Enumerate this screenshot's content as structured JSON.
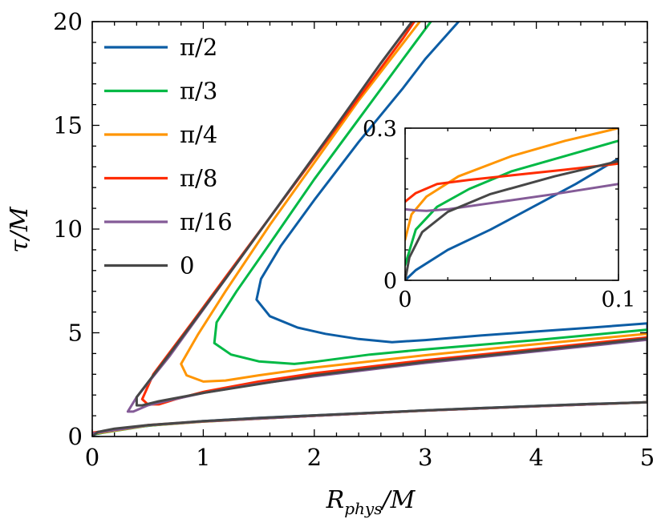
{
  "chart_data": [
    {
      "type": "line",
      "id": "main",
      "title": "",
      "xlabel": "R_phys/M",
      "ylabel": "τ/M",
      "xlim": [
        0,
        5
      ],
      "ylim": [
        0,
        20
      ],
      "x_ticks": [
        "0",
        "1",
        "2",
        "3",
        "4",
        "5"
      ],
      "y_ticks": [
        "0",
        "5",
        "10",
        "15",
        "20"
      ],
      "grid": false,
      "legend_position": "upper-left",
      "series": [
        {
          "name": "π/2",
          "color": "#0C5DA5",
          "points": [
            [
              0,
              0.08
            ],
            [
              0.3,
              0.4
            ],
            [
              0.6,
              0.57
            ],
            [
              1.0,
              0.74
            ],
            [
              1.5,
              0.9
            ],
            [
              2.0,
              1.02
            ],
            [
              2.5,
              1.14
            ],
            [
              3.0,
              1.26
            ],
            [
              3.5,
              1.37
            ],
            [
              4.0,
              1.47
            ],
            [
              4.5,
              1.57
            ],
            [
              5.0,
              1.65
            ],
            [
              5.0,
              5.45
            ],
            [
              4.5,
              5.25
            ],
            [
              4.0,
              5.06
            ],
            [
              3.5,
              4.87
            ],
            [
              3.0,
              4.65
            ],
            [
              2.7,
              4.55
            ],
            [
              2.4,
              4.7
            ],
            [
              2.1,
              4.95
            ],
            [
              1.85,
              5.25
            ],
            [
              1.6,
              5.8
            ],
            [
              1.48,
              6.6
            ],
            [
              1.52,
              7.6
            ],
            [
              1.7,
              9.2
            ],
            [
              2.0,
              11.4
            ],
            [
              2.4,
              14.2
            ],
            [
              2.8,
              16.8
            ],
            [
              3.0,
              18.2
            ],
            [
              3.3,
              20
            ]
          ]
        },
        {
          "name": "π/3",
          "color": "#00B945",
          "points": [
            [
              0,
              0.1
            ],
            [
              0.5,
              0.52
            ],
            [
              1.0,
              0.72
            ],
            [
              2.0,
              1.0
            ],
            [
              3.0,
              1.25
            ],
            [
              4.0,
              1.46
            ],
            [
              5.0,
              1.65
            ],
            [
              5.0,
              5.15
            ],
            [
              4.5,
              4.9
            ],
            [
              4.0,
              4.65
            ],
            [
              3.0,
              4.2
            ],
            [
              2.5,
              3.95
            ],
            [
              2.0,
              3.6
            ],
            [
              1.82,
              3.5
            ],
            [
              1.5,
              3.62
            ],
            [
              1.25,
              3.95
            ],
            [
              1.1,
              4.5
            ],
            [
              1.12,
              5.5
            ],
            [
              1.3,
              7.0
            ],
            [
              1.6,
              9.3
            ],
            [
              2.0,
              12.4
            ],
            [
              2.4,
              15.3
            ],
            [
              2.8,
              18.2
            ],
            [
              3.05,
              20
            ]
          ]
        },
        {
          "name": "π/4",
          "color": "#FF9500",
          "points": [
            [
              0,
              0.12
            ],
            [
              0.5,
              0.53
            ],
            [
              1.0,
              0.72
            ],
            [
              2.0,
              1.0
            ],
            [
              3.0,
              1.25
            ],
            [
              4.0,
              1.46
            ],
            [
              5.0,
              1.65
            ],
            [
              5.0,
              4.95
            ],
            [
              4.5,
              4.7
            ],
            [
              4.0,
              4.45
            ],
            [
              3.0,
              3.92
            ],
            [
              2.0,
              3.32
            ],
            [
              1.5,
              2.95
            ],
            [
              1.2,
              2.7
            ],
            [
              1.0,
              2.65
            ],
            [
              0.85,
              2.95
            ],
            [
              0.8,
              3.5
            ],
            [
              0.95,
              4.9
            ],
            [
              1.2,
              7.0
            ],
            [
              1.6,
              10.2
            ],
            [
              2.0,
              13.2
            ],
            [
              2.4,
              16.2
            ],
            [
              2.95,
              20
            ]
          ]
        },
        {
          "name": "π/8",
          "color": "#FF2C00",
          "points": [
            [
              0,
              0.18
            ],
            [
              0.5,
              0.55
            ],
            [
              1.0,
              0.73
            ],
            [
              2.0,
              1.0
            ],
            [
              3.0,
              1.25
            ],
            [
              4.0,
              1.46
            ],
            [
              5.0,
              1.65
            ],
            [
              5.0,
              4.78
            ],
            [
              4.5,
              4.5
            ],
            [
              4.0,
              4.22
            ],
            [
              3.0,
              3.68
            ],
            [
              2.0,
              3.05
            ],
            [
              1.5,
              2.65
            ],
            [
              1.0,
              2.15
            ],
            [
              0.75,
              1.8
            ],
            [
              0.6,
              1.55
            ],
            [
              0.5,
              1.55
            ],
            [
              0.45,
              1.8
            ],
            [
              0.55,
              3.0
            ],
            [
              0.9,
              5.5
            ],
            [
              1.3,
              8.4
            ],
            [
              1.8,
              12.0
            ],
            [
              2.3,
              15.6
            ],
            [
              2.8,
              19.2
            ],
            [
              2.9,
              20
            ]
          ]
        },
        {
          "name": "π/16",
          "color": "#845B97",
          "points": [
            [
              0,
              0.15
            ],
            [
              0.5,
              0.54
            ],
            [
              1.0,
              0.73
            ],
            [
              2.0,
              1.0
            ],
            [
              3.0,
              1.25
            ],
            [
              4.0,
              1.46
            ],
            [
              5.0,
              1.65
            ],
            [
              5.0,
              4.66
            ],
            [
              4.5,
              4.38
            ],
            [
              4.0,
              4.1
            ],
            [
              3.0,
              3.55
            ],
            [
              2.0,
              2.9
            ],
            [
              1.5,
              2.55
            ],
            [
              1.0,
              2.1
            ],
            [
              0.7,
              1.75
            ],
            [
              0.5,
              1.5
            ],
            [
              0.37,
              1.2
            ],
            [
              0.32,
              1.2
            ],
            [
              0.4,
              1.9
            ],
            [
              0.7,
              3.9
            ],
            [
              1.2,
              7.6
            ],
            [
              1.7,
              11.3
            ],
            [
              2.2,
              15.0
            ],
            [
              2.6,
              18.0
            ],
            [
              2.88,
              20
            ]
          ]
        },
        {
          "name": "0",
          "color": "#474747",
          "points": [
            [
              0,
              0.0
            ],
            [
              0.05,
              0.22
            ],
            [
              0.2,
              0.38
            ],
            [
              0.5,
              0.55
            ],
            [
              1.0,
              0.74
            ],
            [
              1.5,
              0.89
            ],
            [
              2.0,
              1.02
            ],
            [
              2.5,
              1.14
            ],
            [
              3.0,
              1.26
            ],
            [
              3.5,
              1.37
            ],
            [
              4.0,
              1.47
            ],
            [
              4.5,
              1.57
            ],
            [
              5.0,
              1.65
            ],
            [
              5.0,
              4.72
            ],
            [
              4.0,
              4.15
            ],
            [
              3.0,
              3.6
            ],
            [
              2.0,
              2.95
            ],
            [
              1.0,
              2.1
            ],
            [
              0.6,
              1.7
            ],
            [
              0.45,
              1.5
            ],
            [
              0.4,
              1.5
            ],
            [
              0.4,
              1.9
            ],
            [
              0.7,
              4.0
            ],
            [
              1.2,
              7.6
            ],
            [
              1.7,
              11.3
            ],
            [
              2.2,
              15.0
            ],
            [
              2.6,
              18.0
            ],
            [
              2.88,
              20
            ]
          ]
        }
      ]
    },
    {
      "type": "line",
      "id": "inset",
      "xlim": [
        0,
        0.1
      ],
      "ylim": [
        0,
        0.3
      ],
      "x_ticks": [
        "0",
        "0.1"
      ],
      "y_ticks": [
        "0",
        "0.3"
      ],
      "series": [
        {
          "name": "π/2",
          "color": "#0C5DA5",
          "points": [
            [
              0,
              0.0
            ],
            [
              0.005,
              0.02
            ],
            [
              0.02,
              0.06
            ],
            [
              0.04,
              0.1
            ],
            [
              0.06,
              0.145
            ],
            [
              0.08,
              0.19
            ],
            [
              0.1,
              0.24
            ]
          ]
        },
        {
          "name": "π/3",
          "color": "#00B945",
          "points": [
            [
              0,
              0.03
            ],
            [
              0.005,
              0.1
            ],
            [
              0.015,
              0.145
            ],
            [
              0.03,
              0.18
            ],
            [
              0.05,
              0.215
            ],
            [
              0.075,
              0.245
            ],
            [
              0.1,
              0.275
            ]
          ]
        },
        {
          "name": "π/4",
          "color": "#FF9500",
          "points": [
            [
              0,
              0.08
            ],
            [
              0.003,
              0.13
            ],
            [
              0.01,
              0.165
            ],
            [
              0.025,
              0.205
            ],
            [
              0.05,
              0.245
            ],
            [
              0.075,
              0.275
            ],
            [
              0.1,
              0.3
            ]
          ]
        },
        {
          "name": "π/8",
          "color": "#FF2C00",
          "points": [
            [
              0,
              0.155
            ],
            [
              0.005,
              0.172
            ],
            [
              0.015,
              0.19
            ],
            [
              0.03,
              0.198
            ],
            [
              0.05,
              0.207
            ],
            [
              0.075,
              0.218
            ],
            [
              0.1,
              0.23
            ]
          ]
        },
        {
          "name": "π/16",
          "color": "#845B97",
          "points": [
            [
              0,
              0.14
            ],
            [
              0.005,
              0.138
            ],
            [
              0.01,
              0.137
            ],
            [
              0.02,
              0.14
            ],
            [
              0.04,
              0.152
            ],
            [
              0.07,
              0.17
            ],
            [
              0.1,
              0.19
            ]
          ]
        },
        {
          "name": "0",
          "color": "#474747",
          "points": [
            [
              0,
              0.0
            ],
            [
              0.002,
              0.045
            ],
            [
              0.008,
              0.095
            ],
            [
              0.02,
              0.135
            ],
            [
              0.04,
              0.17
            ],
            [
              0.07,
              0.205
            ],
            [
              0.1,
              0.235
            ]
          ]
        }
      ]
    }
  ]
}
